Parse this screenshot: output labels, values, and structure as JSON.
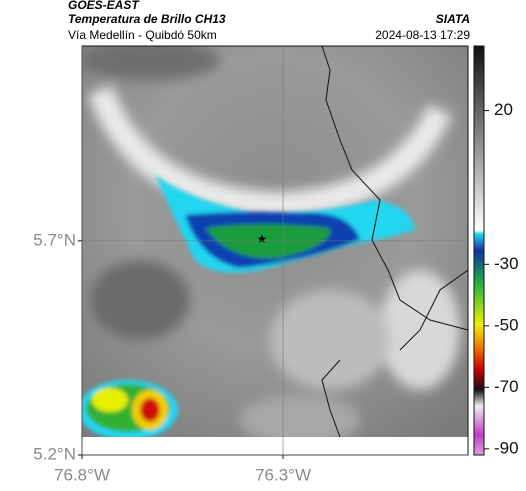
{
  "header": {
    "satellite": "GOES-EAST",
    "title": "Temperatura de Brillo CH13",
    "source": "SIATA",
    "subtitle": "Vía Medellín - Quibdó 50km",
    "datetime": "2024-08-13 17:29"
  },
  "map": {
    "latlim": [
      5.2,
      6.155
    ],
    "lonlim": [
      -76.8,
      -75.84
    ],
    "lat_ticks": [
      {
        "value": 5.7,
        "label": "5.7°N"
      },
      {
        "value": 5.2,
        "label": "5.2°N"
      }
    ],
    "lon_ticks": [
      {
        "value": -76.8,
        "label": "76.8°W"
      },
      {
        "value": -76.3,
        "label": "76.3°W"
      }
    ]
  },
  "colorbar": {
    "range": [
      -92,
      41
    ],
    "ticks": [
      20,
      -30,
      -50,
      -70,
      -90
    ]
  }
}
